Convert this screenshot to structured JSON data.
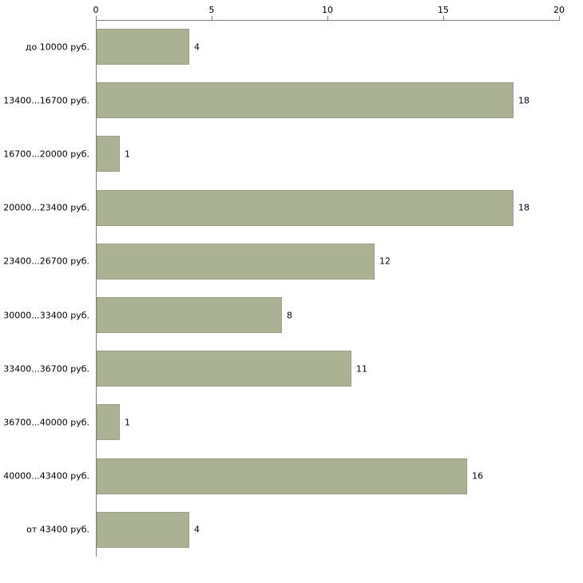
{
  "chart_data": {
    "type": "bar",
    "orientation": "horizontal",
    "title": "",
    "xlabel": "",
    "ylabel": "",
    "xlim": [
      0,
      20
    ],
    "x_ticks": [
      0,
      5,
      10,
      15,
      20
    ],
    "grid": false,
    "legend": false,
    "categories": [
      "до 10000 руб.",
      "13400...16700 руб.",
      "16700...20000 руб.",
      "20000...23400 руб.",
      "23400...26700 руб.",
      "30000...33400 руб.",
      "33400...36700 руб.",
      "36700...40000 руб.",
      "40000...43400 руб.",
      "от 43400 руб."
    ],
    "values": [
      4,
      18,
      1,
      18,
      12,
      8,
      11,
      1,
      16,
      4
    ],
    "colors": {
      "bar_fill": "#abb294",
      "bar_border": "#9aa183",
      "axis": "#808080",
      "text": "#000000",
      "background": "#ffffff"
    }
  }
}
